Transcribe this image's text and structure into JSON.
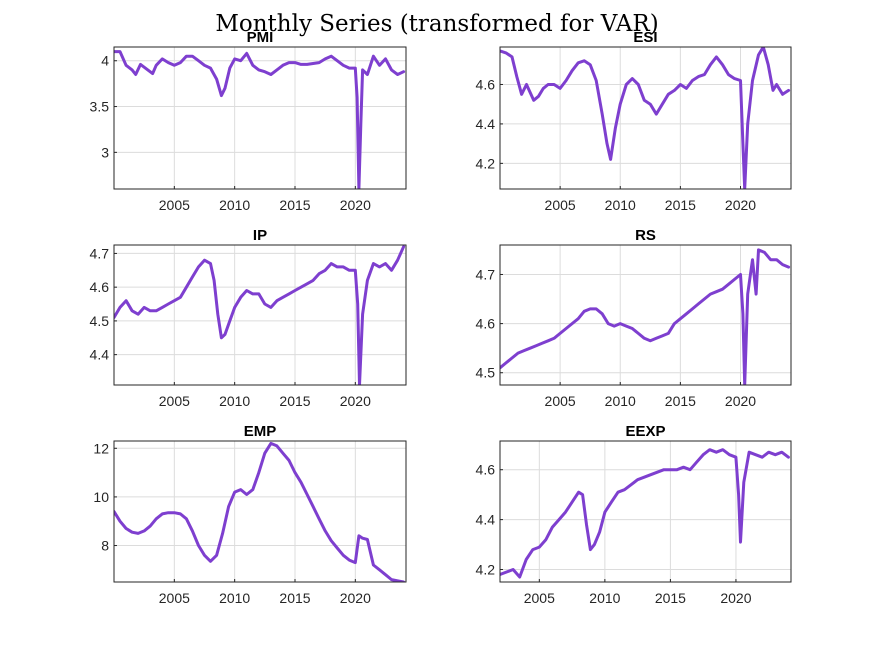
{
  "figure": {
    "title": "Monthly Series (transformed for VAR)"
  },
  "colors": {
    "series": "#7e3fcf"
  },
  "chart_data": [
    {
      "type": "line",
      "title": "PMI",
      "xlim": [
        2000,
        2024.2
      ],
      "ylim": [
        2.6,
        4.15
      ],
      "xticks": [
        2005,
        2010,
        2015,
        2020
      ],
      "yticks": [
        3,
        3.5,
        4
      ],
      "yticklabels": [
        "3",
        "3.5",
        "4"
      ],
      "grid": true,
      "x": [
        2000.0,
        2000.5,
        2001.0,
        2001.5,
        2001.8,
        2002.2,
        2002.8,
        2003.2,
        2003.5,
        2004.0,
        2004.5,
        2005.0,
        2005.5,
        2006.0,
        2006.5,
        2007.0,
        2007.5,
        2008.0,
        2008.5,
        2008.9,
        2009.2,
        2009.6,
        2010.0,
        2010.5,
        2011.0,
        2011.5,
        2012.0,
        2012.5,
        2013.0,
        2013.5,
        2014.0,
        2014.5,
        2015.0,
        2015.5,
        2016.0,
        2017.0,
        2017.5,
        2018.0,
        2018.5,
        2019.0,
        2019.5,
        2020.0,
        2020.15,
        2020.3,
        2020.45,
        2020.6,
        2021.0,
        2021.5,
        2022.0,
        2022.5,
        2023.0,
        2023.5,
        2024.0
      ],
      "y": [
        4.1,
        4.1,
        3.95,
        3.9,
        3.85,
        3.96,
        3.9,
        3.86,
        3.95,
        4.02,
        3.98,
        3.95,
        3.98,
        4.05,
        4.05,
        4.0,
        3.95,
        3.92,
        3.8,
        3.62,
        3.7,
        3.92,
        4.02,
        4.0,
        4.08,
        3.95,
        3.9,
        3.88,
        3.85,
        3.9,
        3.95,
        3.98,
        3.98,
        3.96,
        3.96,
        3.98,
        4.02,
        4.05,
        4.0,
        3.95,
        3.92,
        3.92,
        3.6,
        2.6,
        3.3,
        3.9,
        3.85,
        4.05,
        3.95,
        4.02,
        3.9,
        3.85,
        3.88
      ]
    },
    {
      "type": "line",
      "title": "ESI",
      "xlim": [
        2000,
        2024.2
      ],
      "ylim": [
        4.07,
        4.79
      ],
      "xticks": [
        2005,
        2010,
        2015,
        2020
      ],
      "yticks": [
        4.2,
        4.4,
        4.6
      ],
      "yticklabels": [
        "4.2",
        "4.4",
        "4.6"
      ],
      "grid": true,
      "x": [
        2000.0,
        2000.5,
        2001.0,
        2001.4,
        2001.8,
        2002.2,
        2002.8,
        2003.2,
        2003.6,
        2004.0,
        2004.5,
        2005.0,
        2005.5,
        2006.0,
        2006.5,
        2007.0,
        2007.5,
        2008.0,
        2008.5,
        2008.9,
        2009.2,
        2009.6,
        2010.0,
        2010.5,
        2011.0,
        2011.5,
        2012.0,
        2012.5,
        2013.0,
        2013.5,
        2014.0,
        2014.5,
        2015.0,
        2015.5,
        2016.0,
        2016.5,
        2017.0,
        2017.5,
        2018.0,
        2018.5,
        2019.0,
        2019.5,
        2020.0,
        2020.2,
        2020.35,
        2020.6,
        2021.0,
        2021.5,
        2021.9,
        2022.3,
        2022.7,
        2023.0,
        2023.5,
        2024.0
      ],
      "y": [
        4.77,
        4.76,
        4.74,
        4.64,
        4.55,
        4.6,
        4.52,
        4.54,
        4.58,
        4.6,
        4.6,
        4.58,
        4.62,
        4.67,
        4.71,
        4.72,
        4.7,
        4.62,
        4.45,
        4.3,
        4.22,
        4.38,
        4.5,
        4.6,
        4.63,
        4.6,
        4.52,
        4.5,
        4.45,
        4.5,
        4.55,
        4.57,
        4.6,
        4.58,
        4.62,
        4.64,
        4.65,
        4.7,
        4.74,
        4.7,
        4.65,
        4.63,
        4.62,
        4.3,
        4.07,
        4.4,
        4.62,
        4.75,
        4.79,
        4.7,
        4.57,
        4.6,
        4.55,
        4.57
      ]
    },
    {
      "type": "line",
      "title": "IP",
      "xlim": [
        2000,
        2024.2
      ],
      "ylim": [
        4.31,
        4.725
      ],
      "xticks": [
        2005,
        2010,
        2015,
        2020
      ],
      "yticks": [
        4.4,
        4.5,
        4.6,
        4.7
      ],
      "yticklabels": [
        "4.4",
        "4.5",
        "4.6",
        "4.7"
      ],
      "grid": true,
      "x": [
        2000.0,
        2000.5,
        2001.0,
        2001.5,
        2002.0,
        2002.5,
        2003.0,
        2003.5,
        2004.0,
        2004.5,
        2005.0,
        2005.5,
        2006.0,
        2006.5,
        2007.0,
        2007.5,
        2008.0,
        2008.3,
        2008.6,
        2008.9,
        2009.2,
        2009.6,
        2010.0,
        2010.5,
        2011.0,
        2011.5,
        2012.0,
        2012.5,
        2013.0,
        2013.5,
        2014.0,
        2014.5,
        2015.0,
        2015.5,
        2016.0,
        2016.5,
        2017.0,
        2017.5,
        2018.0,
        2018.5,
        2019.0,
        2019.5,
        2020.0,
        2020.2,
        2020.35,
        2020.6,
        2021.0,
        2021.5,
        2022.0,
        2022.5,
        2023.0,
        2023.5,
        2024.0
      ],
      "y": [
        4.51,
        4.54,
        4.56,
        4.53,
        4.52,
        4.54,
        4.53,
        4.53,
        4.54,
        4.55,
        4.56,
        4.57,
        4.6,
        4.63,
        4.66,
        4.68,
        4.67,
        4.62,
        4.52,
        4.45,
        4.46,
        4.5,
        4.54,
        4.57,
        4.59,
        4.58,
        4.58,
        4.55,
        4.54,
        4.56,
        4.57,
        4.58,
        4.59,
        4.6,
        4.61,
        4.62,
        4.64,
        4.65,
        4.67,
        4.66,
        4.66,
        4.65,
        4.65,
        4.55,
        4.31,
        4.52,
        4.62,
        4.67,
        4.66,
        4.67,
        4.65,
        4.68,
        4.72
      ]
    },
    {
      "type": "line",
      "title": "RS",
      "xlim": [
        2000,
        2024.2
      ],
      "ylim": [
        4.475,
        4.76
      ],
      "xticks": [
        2005,
        2010,
        2015,
        2020
      ],
      "yticks": [
        4.5,
        4.6,
        4.7
      ],
      "yticklabels": [
        "4.5",
        "4.6",
        "4.7"
      ],
      "grid": true,
      "x": [
        2000.0,
        2000.5,
        2001.0,
        2001.5,
        2002.0,
        2002.5,
        2003.0,
        2003.5,
        2004.0,
        2004.5,
        2005.0,
        2005.5,
        2006.0,
        2006.5,
        2007.0,
        2007.5,
        2008.0,
        2008.5,
        2009.0,
        2009.5,
        2010.0,
        2010.5,
        2011.0,
        2011.5,
        2012.0,
        2012.5,
        2013.0,
        2013.5,
        2014.0,
        2014.5,
        2015.0,
        2015.5,
        2016.0,
        2016.5,
        2017.0,
        2017.5,
        2018.0,
        2018.5,
        2019.0,
        2019.5,
        2020.0,
        2020.2,
        2020.35,
        2020.6,
        2021.0,
        2021.3,
        2021.5,
        2022.0,
        2022.5,
        2023.0,
        2023.5,
        2024.0
      ],
      "y": [
        4.51,
        4.52,
        4.53,
        4.54,
        4.545,
        4.55,
        4.555,
        4.56,
        4.565,
        4.57,
        4.58,
        4.59,
        4.6,
        4.61,
        4.625,
        4.63,
        4.63,
        4.62,
        4.6,
        4.595,
        4.6,
        4.595,
        4.59,
        4.58,
        4.57,
        4.565,
        4.57,
        4.575,
        4.58,
        4.6,
        4.61,
        4.62,
        4.63,
        4.64,
        4.65,
        4.66,
        4.665,
        4.67,
        4.68,
        4.69,
        4.7,
        4.62,
        4.475,
        4.66,
        4.73,
        4.66,
        4.75,
        4.745,
        4.73,
        4.73,
        4.72,
        4.715
      ]
    },
    {
      "type": "line",
      "title": "EMP",
      "xlim": [
        2000,
        2024.2
      ],
      "ylim": [
        6.5,
        12.3
      ],
      "xticks": [
        2005,
        2010,
        2015,
        2020
      ],
      "yticks": [
        8,
        10,
        12
      ],
      "yticklabels": [
        "8",
        "10",
        "12"
      ],
      "grid": true,
      "x": [
        2000.0,
        2000.5,
        2001.0,
        2001.5,
        2002.0,
        2002.5,
        2003.0,
        2003.5,
        2004.0,
        2004.5,
        2005.0,
        2005.5,
        2006.0,
        2006.5,
        2007.0,
        2007.5,
        2008.0,
        2008.5,
        2009.0,
        2009.5,
        2010.0,
        2010.5,
        2011.0,
        2011.5,
        2012.0,
        2012.5,
        2013.0,
        2013.5,
        2014.0,
        2014.5,
        2015.0,
        2015.5,
        2016.0,
        2016.5,
        2017.0,
        2017.5,
        2018.0,
        2018.5,
        2019.0,
        2019.5,
        2020.0,
        2020.3,
        2020.6,
        2021.0,
        2021.5,
        2022.0,
        2022.5,
        2023.0,
        2023.5,
        2024.0
      ],
      "y": [
        9.4,
        9.0,
        8.7,
        8.55,
        8.5,
        8.6,
        8.8,
        9.1,
        9.3,
        9.35,
        9.35,
        9.3,
        9.1,
        8.6,
        8.0,
        7.6,
        7.35,
        7.6,
        8.5,
        9.6,
        10.2,
        10.3,
        10.1,
        10.3,
        11.0,
        11.8,
        12.2,
        12.1,
        11.8,
        11.5,
        11.0,
        10.6,
        10.1,
        9.6,
        9.1,
        8.6,
        8.2,
        7.9,
        7.6,
        7.4,
        7.3,
        8.4,
        8.3,
        8.25,
        7.2,
        7.0,
        6.8,
        6.6,
        6.55,
        6.5
      ]
    },
    {
      "type": "line",
      "title": "EEXP",
      "xlim": [
        2002,
        2024.2
      ],
      "ylim": [
        4.15,
        4.715
      ],
      "xticks": [
        2005,
        2010,
        2015,
        2020
      ],
      "yticks": [
        4.2,
        4.4,
        4.6
      ],
      "yticklabels": [
        "4.2",
        "4.4",
        "4.6"
      ],
      "grid": true,
      "x": [
        2002.0,
        2002.5,
        2003.0,
        2003.5,
        2004.0,
        2004.5,
        2005.0,
        2005.5,
        2006.0,
        2006.5,
        2007.0,
        2007.5,
        2008.0,
        2008.3,
        2008.6,
        2008.9,
        2009.2,
        2009.6,
        2010.0,
        2010.5,
        2011.0,
        2011.5,
        2012.0,
        2012.5,
        2013.0,
        2013.5,
        2014.0,
        2014.5,
        2015.0,
        2015.5,
        2016.0,
        2016.5,
        2017.0,
        2017.5,
        2018.0,
        2018.5,
        2019.0,
        2019.5,
        2020.0,
        2020.2,
        2020.35,
        2020.6,
        2021.0,
        2021.5,
        2022.0,
        2022.5,
        2023.0,
        2023.5,
        2024.0
      ],
      "y": [
        4.18,
        4.19,
        4.2,
        4.17,
        4.24,
        4.28,
        4.29,
        4.32,
        4.37,
        4.4,
        4.43,
        4.47,
        4.51,
        4.5,
        4.38,
        4.28,
        4.3,
        4.35,
        4.43,
        4.47,
        4.51,
        4.52,
        4.54,
        4.56,
        4.57,
        4.58,
        4.59,
        4.6,
        4.6,
        4.6,
        4.61,
        4.6,
        4.63,
        4.66,
        4.68,
        4.67,
        4.68,
        4.66,
        4.65,
        4.5,
        4.31,
        4.55,
        4.67,
        4.66,
        4.65,
        4.67,
        4.66,
        4.67,
        4.65
      ]
    }
  ]
}
